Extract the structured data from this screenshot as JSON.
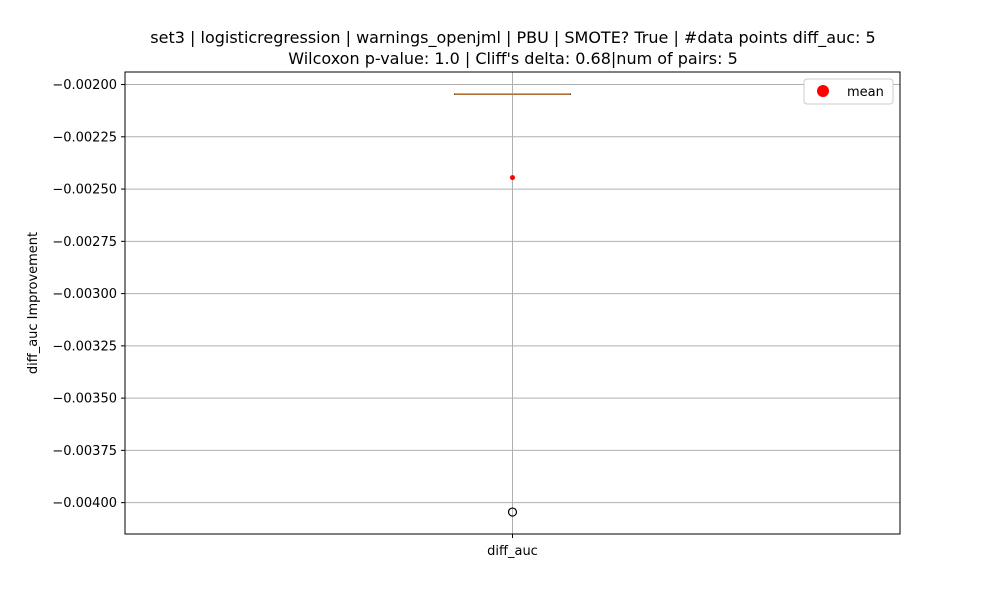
{
  "chart_data": {
    "type": "box",
    "title_line1": "set3 | logisticregression | warnings_openjml | PBU | SMOTE? True | #data points diff_auc: 5",
    "title_line2": "Wilcoxon p-value: 1.0 | Cliff's delta: 0.68|num of pairs: 5",
    "xlabel": "",
    "ylabel": "diff_auc Improvement",
    "categories": [
      "diff_auc"
    ],
    "ylim": [
      -0.00415,
      -0.00194
    ],
    "yticks": [
      -0.002,
      -0.00225,
      -0.0025,
      -0.00275,
      -0.003,
      -0.00325,
      -0.0035,
      -0.00375,
      -0.004
    ],
    "ytick_labels": [
      "−0.00200",
      "−0.00225",
      "−0.00250",
      "−0.00275",
      "−0.00300",
      "−0.00325",
      "−0.00350",
      "−0.00375",
      "−0.00400"
    ],
    "grid": true,
    "box": {
      "q1": -0.002045,
      "median": -0.002045,
      "q3": -0.002045,
      "whisker_low": -0.002045,
      "whisker_high": -0.002045,
      "outliers": [
        -0.004045
      ],
      "mean": -0.002445
    },
    "legend": {
      "position": "top-right",
      "entries": [
        {
          "label": "mean",
          "color": "#ff0000"
        }
      ]
    },
    "colors": {
      "box": "#000000",
      "median": "#e8893a",
      "mean": "#ff0000",
      "grid": "#b0b0b0",
      "outlier": "#000000"
    }
  }
}
